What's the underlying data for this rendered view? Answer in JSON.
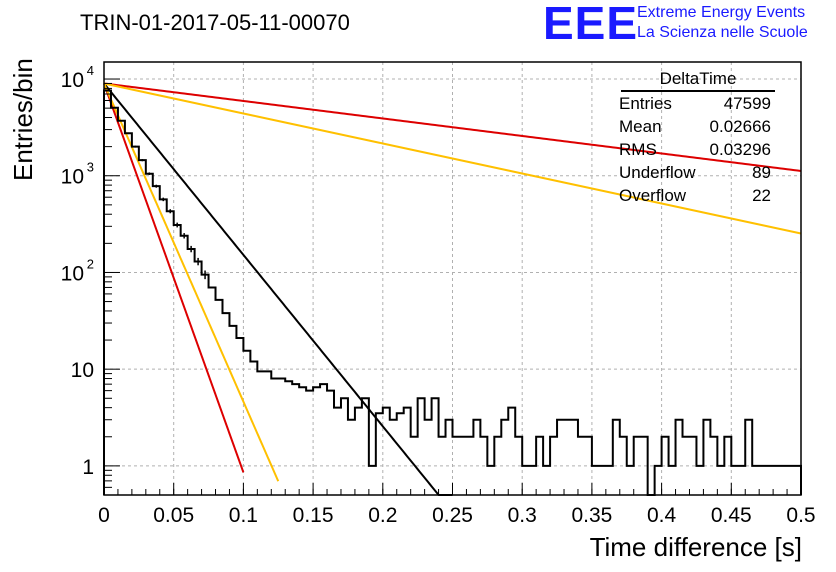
{
  "chart_data": {
    "type": "histogram",
    "title": "TRIN-01-2017-05-11-00070",
    "xlabel": "Time difference [s]",
    "ylabel": "Entries/bin",
    "xlim": [
      0,
      0.5
    ],
    "ylim": [
      0.5,
      15000
    ],
    "yscale": "log",
    "grid": true,
    "x_ticks": [
      "0",
      "0.05",
      "0.1",
      "0.15",
      "0.2",
      "0.25",
      "0.3",
      "0.35",
      "0.4",
      "0.45",
      "0.5"
    ],
    "y_ticks": [
      {
        "value": 1,
        "label": "1"
      },
      {
        "value": 10,
        "label": "10"
      },
      {
        "value": 100,
        "label": "10",
        "exp": "2"
      },
      {
        "value": 1000,
        "label": "10",
        "exp": "3"
      },
      {
        "value": 10000,
        "label": "10",
        "exp": "4"
      }
    ],
    "histogram": {
      "name": "DeltaTime",
      "bin_width": 0.005,
      "counts": [
        7600,
        5050,
        3700,
        2750,
        2000,
        1450,
        1050,
        780,
        570,
        430,
        310,
        240,
        175,
        130,
        95,
        70,
        52,
        38,
        28,
        21,
        15.5,
        12,
        9.5,
        9.5,
        8,
        8,
        7.5,
        7,
        6.5,
        6,
        6.5,
        7,
        6,
        4,
        5,
        3,
        4,
        5,
        1,
        3.5,
        4,
        3,
        3.5,
        4,
        2,
        5,
        3,
        5,
        2,
        3,
        2,
        2,
        2,
        3,
        2,
        1,
        2,
        3,
        4,
        2,
        1,
        1,
        2,
        1,
        2,
        3,
        3,
        3,
        2,
        2,
        1,
        1,
        1,
        3,
        2,
        1,
        2,
        2,
        0,
        1,
        2,
        1,
        3,
        2,
        2,
        1,
        3,
        2,
        1,
        2,
        1,
        1,
        3,
        1,
        1,
        1,
        1,
        1,
        1,
        1
      ]
    },
    "fits": [
      {
        "color": "#000000",
        "A": 9000,
        "tau": 0.0245,
        "x_end": 0.25
      },
      {
        "color": "#dd0000",
        "A": 9000,
        "tau": 0.0108,
        "x_end": 0.1
      },
      {
        "color": "#ffc000",
        "A": 9000,
        "tau": 0.0132,
        "x_end": 0.125
      },
      {
        "color": "#dd0000",
        "A": 9000,
        "tau": 0.24,
        "x_end": 0.5
      },
      {
        "color": "#ffc000",
        "A": 9000,
        "tau": 0.14,
        "x_end": 0.5
      }
    ]
  },
  "stats": {
    "title": "DeltaTime",
    "rows": [
      {
        "label": "Entries",
        "value": "47599"
      },
      {
        "label": "Mean",
        "value": "0.02666"
      },
      {
        "label": "RMS",
        "value": "0.03296"
      },
      {
        "label": "Underflow",
        "value": "89"
      },
      {
        "label": "Overflow",
        "value": "22"
      }
    ]
  },
  "logo": {
    "mark": "EEE",
    "line1": "Extreme Energy Events",
    "line2": "La Scienza nelle Scuole",
    "color": "#1a1aff"
  }
}
